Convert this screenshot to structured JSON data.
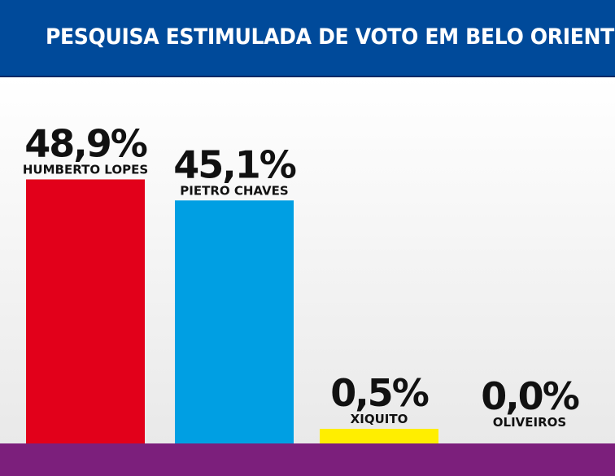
{
  "header": {
    "title": "PESQUISA ESTIMULADA DE VOTO EM BELO ORIENTE"
  },
  "colors": {
    "header_bg": "#004a9a",
    "base_bar": "#7c1f7c"
  },
  "chart_data": {
    "type": "bar",
    "title": "PESQUISA ESTIMULADA DE VOTO EM BELO ORIENTE",
    "xlabel": "",
    "ylabel": "",
    "categories": [
      "HUMBERTO LOPES",
      "PIETRO CHAVES",
      "XIQUITO",
      "OLIVEIROS"
    ],
    "values": [
      48.9,
      45.1,
      0.5,
      0.0
    ],
    "value_labels": [
      "48,9%",
      "45,1%",
      "0,5%",
      "0,0%"
    ],
    "colors": [
      "#e2001a",
      "#009fe3",
      "#ffee00",
      "#cccccc"
    ],
    "ylim": [
      0,
      50
    ],
    "grid": false,
    "legend": "none"
  }
}
